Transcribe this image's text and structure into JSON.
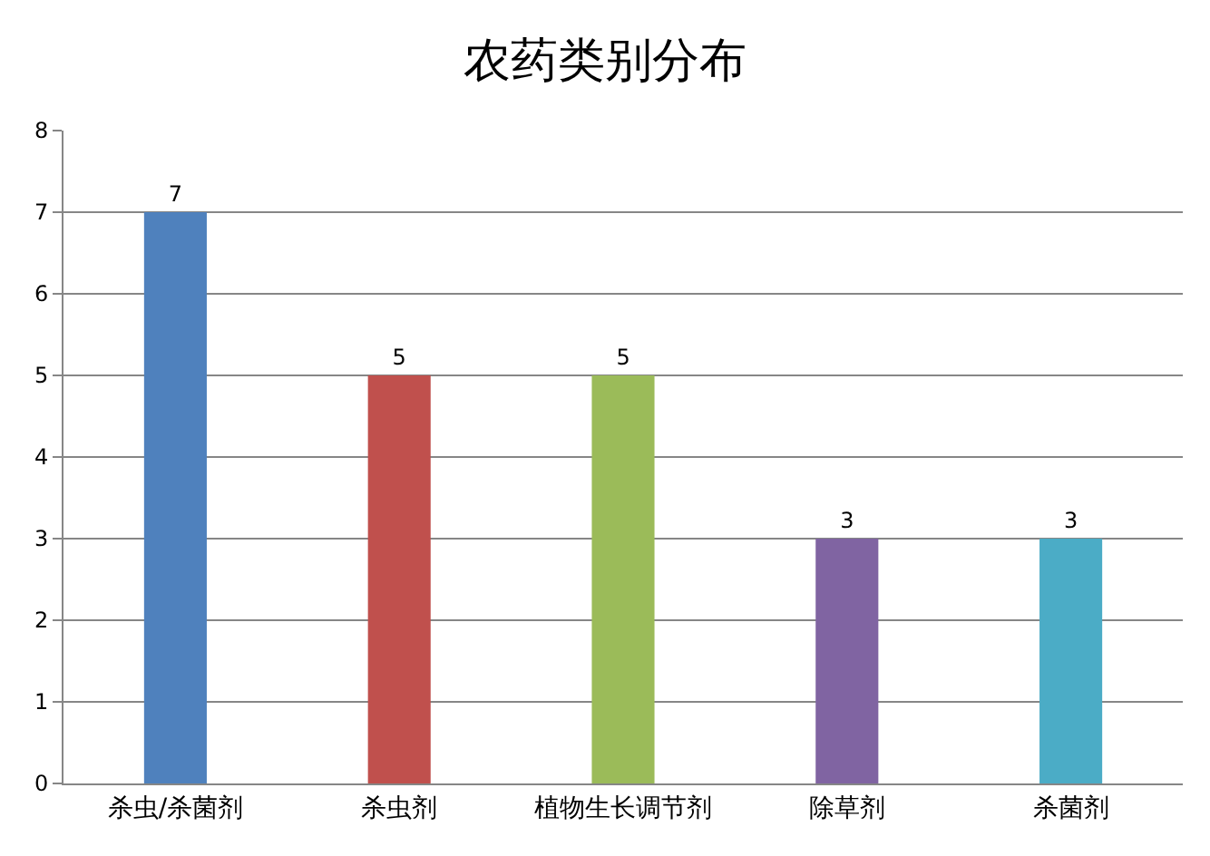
{
  "chart_data": {
    "type": "bar",
    "title": "农药类别分布",
    "categories": [
      "杀虫/杀菌剂",
      "杀虫剂",
      "植物生长调节剂",
      "除草剂",
      "杀菌剂"
    ],
    "values": [
      7,
      5,
      5,
      3,
      3
    ],
    "colors": [
      "#4f81bd",
      "#c0504d",
      "#9bbb59",
      "#8064a2",
      "#4bacc6"
    ],
    "ylim": [
      0,
      8
    ],
    "yticks": [
      0,
      1,
      2,
      3,
      4,
      5,
      6,
      7,
      8
    ],
    "grid": "y",
    "data_labels": true
  }
}
